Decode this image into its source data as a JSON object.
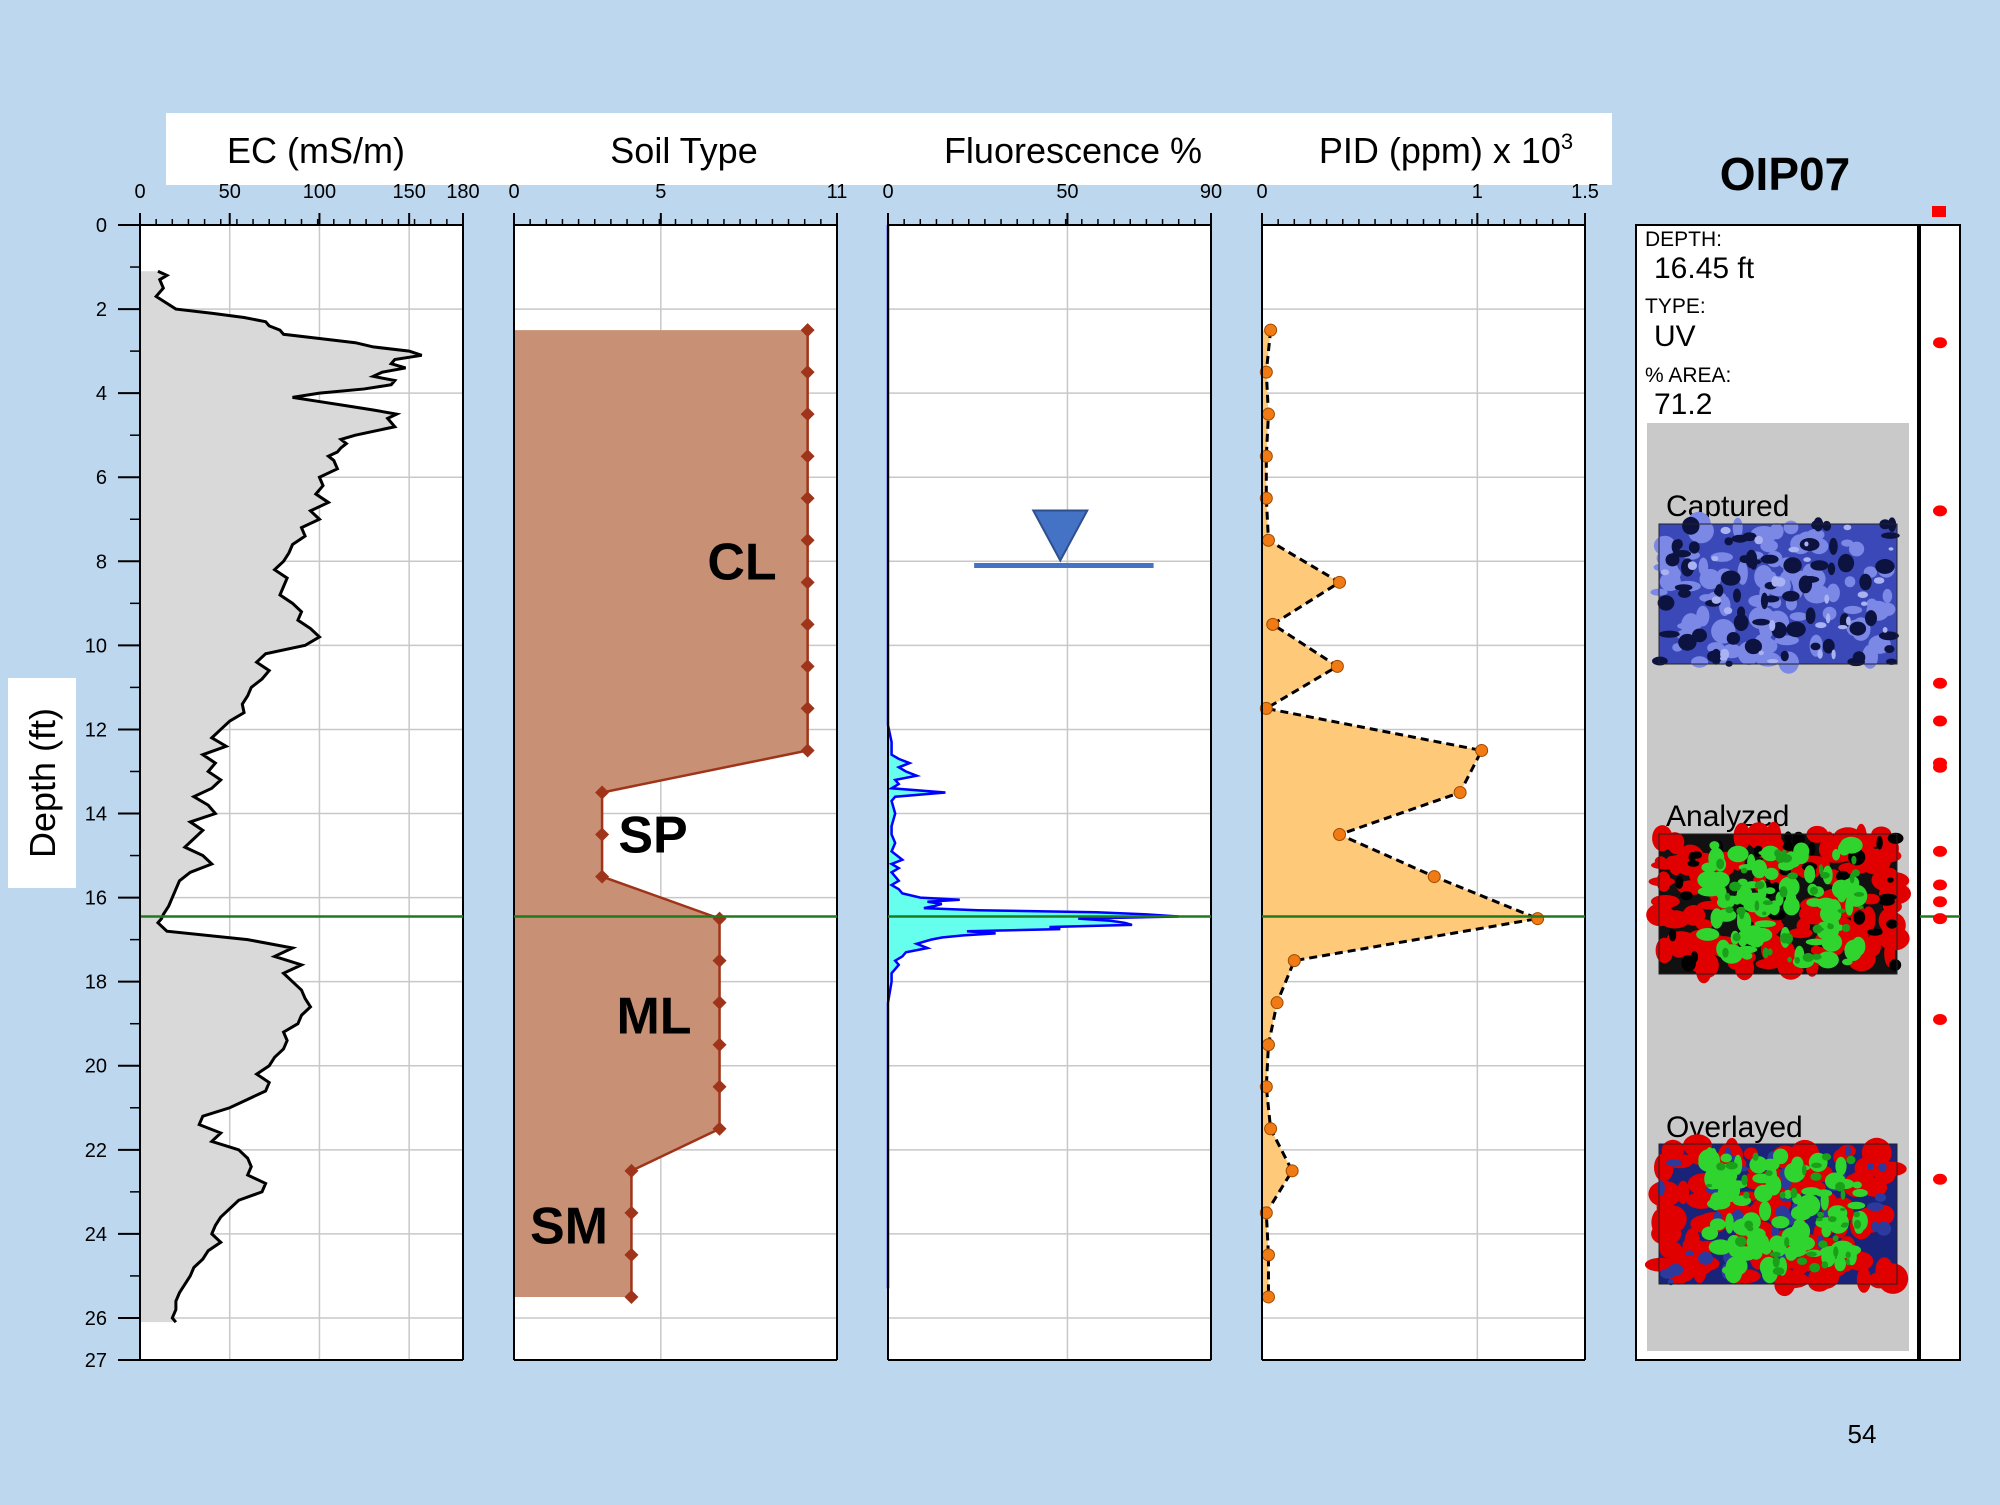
{
  "slide": {
    "title": "OIP07",
    "page_number": "54"
  },
  "colors": {
    "background": "#bdd7ee",
    "ec_fill": "#d9d9d9",
    "soil_fill": "#c89074",
    "soil_line": "#a0341a",
    "fluor_fill": "#66ffee",
    "fluor_line": "#0000ff",
    "pid_fill": "#ffc97a",
    "pid_marker": "#f07a14",
    "current_depth_line": "#1f7a1f",
    "water_table": "#4472c4"
  },
  "chart_data": {
    "type": "line",
    "ylabel": "Depth (ft)",
    "ylim": [
      0,
      27
    ],
    "y_ticks": [
      "0",
      "2",
      "4",
      "6",
      "8",
      "10",
      "12",
      "14",
      "16",
      "18",
      "20",
      "22",
      "24",
      "26",
      "27"
    ],
    "current_depth": 16.45,
    "tracks": [
      {
        "id": "ec",
        "title": "EC (mS/m)",
        "xlim": [
          0,
          180
        ],
        "tick_labels": [
          "0",
          "50",
          "100",
          "150",
          "180"
        ],
        "series": {
          "depth": [
            1.1,
            1.2,
            1.3,
            1.5,
            1.7,
            2.0,
            2.1,
            2.2,
            2.3,
            2.4,
            2.5,
            2.6,
            2.7,
            2.8,
            2.9,
            3.0,
            3.1,
            3.2,
            3.3,
            3.4,
            3.5,
            3.6,
            3.7,
            3.8,
            3.9,
            4.0,
            4.1,
            4.2,
            4.3,
            4.4,
            4.5,
            4.6,
            4.8,
            5.0,
            5.1,
            5.2,
            5.3,
            5.4,
            5.5,
            5.6,
            5.8,
            6.0,
            6.2,
            6.4,
            6.6,
            6.8,
            7.0,
            7.2,
            7.4,
            7.6,
            7.8,
            8.0,
            8.2,
            8.4,
            8.6,
            8.8,
            9.0,
            9.2,
            9.4,
            9.6,
            9.8,
            10.0,
            10.2,
            10.4,
            10.6,
            10.8,
            11.0,
            11.2,
            11.4,
            11.6,
            11.8,
            12.0,
            12.2,
            12.4,
            12.6,
            12.8,
            13.0,
            13.2,
            13.4,
            13.6,
            13.8,
            14.0,
            14.2,
            14.4,
            14.6,
            14.8,
            15.0,
            15.2,
            15.4,
            15.6,
            15.8,
            16.0,
            16.2,
            16.4,
            16.5,
            16.6,
            16.8,
            17.0,
            17.2,
            17.4,
            17.6,
            17.8,
            18.0,
            18.2,
            18.4,
            18.6,
            18.8,
            19.0,
            19.2,
            19.4,
            19.6,
            19.8,
            20.0,
            20.2,
            20.4,
            20.6,
            20.8,
            21.0,
            21.2,
            21.4,
            21.6,
            21.8,
            22.0,
            22.2,
            22.4,
            22.6,
            22.8,
            23.0,
            23.2,
            23.4,
            23.6,
            23.8,
            24.0,
            24.2,
            24.4,
            24.6,
            24.8,
            25.0,
            25.2,
            25.4,
            25.6,
            25.8,
            26.0,
            26.1
          ],
          "value": [
            10,
            15,
            11,
            13,
            9,
            20,
            40,
            58,
            70,
            72,
            78,
            80,
            100,
            120,
            130,
            150,
            157,
            142,
            140,
            148,
            135,
            130,
            142,
            140,
            125,
            100,
            85,
            100,
            115,
            130,
            143,
            138,
            142,
            120,
            112,
            115,
            112,
            110,
            105,
            108,
            110,
            100,
            102,
            98,
            105,
            95,
            100,
            90,
            92,
            85,
            83,
            80,
            75,
            82,
            80,
            78,
            85,
            90,
            88,
            95,
            100,
            92,
            70,
            65,
            72,
            68,
            62,
            60,
            57,
            58,
            50,
            45,
            40,
            48,
            35,
            42,
            38,
            45,
            40,
            30,
            38,
            42,
            28,
            35,
            30,
            25,
            35,
            40,
            28,
            22,
            20,
            18,
            16,
            13,
            12,
            10,
            15,
            60,
            85,
            75,
            90,
            80,
            85,
            90,
            92,
            95,
            90,
            88,
            80,
            82,
            80,
            75,
            72,
            65,
            72,
            70,
            60,
            50,
            35,
            33,
            45,
            40,
            55,
            60,
            62,
            60,
            70,
            68,
            55,
            50,
            45,
            42,
            40,
            45,
            38,
            35,
            30,
            28,
            25,
            22,
            20,
            20,
            18,
            20
          ],
          "baseline_end": 26.1
        }
      },
      {
        "id": "soil",
        "title": "Soil Type",
        "xlim": [
          0,
          11
        ],
        "tick_labels": [
          "0",
          "5",
          "11"
        ],
        "series": {
          "depth": [
            2.5,
            3.5,
            4.5,
            5.5,
            6.5,
            7.5,
            8.5,
            9.5,
            10.5,
            11.5,
            12.5,
            13.5,
            14.5,
            15.5,
            16.5,
            17.5,
            18.5,
            19.5,
            20.5,
            21.5,
            22.5,
            23.5,
            24.5,
            25.5
          ],
          "value": [
            10,
            10,
            10,
            10,
            10,
            10,
            10,
            10,
            10,
            10,
            10,
            3,
            3,
            3,
            7,
            7,
            7,
            7,
            7,
            7,
            4,
            4,
            4,
            4
          ]
        },
        "labels": [
          {
            "text": "CL",
            "depth": 8
          },
          {
            "text": "SP",
            "depth": 14.5
          },
          {
            "text": "ML",
            "depth": 18.8
          },
          {
            "text": "SM",
            "depth": 23.8
          }
        ]
      },
      {
        "id": "fluor",
        "title": "Fluorescence %",
        "xlim": [
          0,
          90
        ],
        "tick_labels": [
          "0",
          "50",
          "90"
        ],
        "water_table_depth": 8.1,
        "series": {
          "depth": [
            0,
            11.9,
            12.3,
            12.6,
            12.7,
            12.8,
            12.9,
            13.0,
            13.1,
            13.2,
            13.3,
            13.4,
            13.5,
            13.6,
            13.7,
            14.0,
            14.3,
            14.5,
            14.7,
            14.9,
            15.1,
            15.2,
            15.3,
            15.4,
            15.5,
            15.6,
            15.7,
            15.8,
            15.9,
            16.0,
            16.05,
            16.1,
            16.15,
            16.2,
            16.25,
            16.3,
            16.35,
            16.4,
            16.45,
            16.5,
            16.55,
            16.6,
            16.65,
            16.7,
            16.75,
            16.8,
            16.85,
            16.9,
            16.95,
            17.0,
            17.1,
            17.2,
            17.3,
            17.4,
            17.5,
            17.6,
            17.7,
            17.8,
            18.0,
            18.5,
            25.3
          ],
          "value": [
            0,
            0,
            1,
            1,
            3,
            6,
            3,
            5,
            8,
            2,
            3,
            1,
            16,
            2,
            1,
            2,
            1,
            1,
            2,
            1,
            4,
            1,
            3,
            1,
            2,
            3,
            1,
            3,
            4,
            9,
            20,
            11,
            15,
            13,
            10,
            25,
            58,
            72,
            81,
            53,
            62,
            66,
            68,
            45,
            48,
            22,
            30,
            21,
            15,
            12,
            8,
            11,
            5,
            4,
            2,
            3,
            2,
            1,
            1,
            0,
            0
          ]
        }
      },
      {
        "id": "pid",
        "title": "PID (ppm) x 10",
        "title_superscript": "3",
        "xlim": [
          0,
          1.5
        ],
        "tick_labels": [
          "0",
          "1",
          "1.5"
        ],
        "series": {
          "depth": [
            2.5,
            3.5,
            4.5,
            5.5,
            6.5,
            7.5,
            8.5,
            9.5,
            10.5,
            11.5,
            12.5,
            13.5,
            14.5,
            15.5,
            16.5,
            17.5,
            18.5,
            19.5,
            20.5,
            21.5,
            22.5,
            23.5,
            24.5,
            25.5
          ],
          "value": [
            0.04,
            0.02,
            0.03,
            0.02,
            0.02,
            0.03,
            0.36,
            0.05,
            0.35,
            0.02,
            1.02,
            0.92,
            0.36,
            0.8,
            1.28,
            0.15,
            0.07,
            0.03,
            0.02,
            0.04,
            0.14,
            0.02,
            0.03,
            0.03
          ]
        }
      }
    ],
    "image_panel": {
      "depth_label": "DEPTH:",
      "depth_value": "16.45 ft",
      "type_label": "TYPE:",
      "type_value": "UV",
      "area_label": "% AREA:",
      "area_value": "71.2",
      "captions": [
        "Captured",
        "Analyzed",
        "Overlayed"
      ]
    },
    "image_markers_depth": [
      2.8,
      6.8,
      10.9,
      11.8,
      12.8,
      12.9,
      14.9,
      15.7,
      16.1,
      16.5,
      18.9,
      22.7
    ]
  }
}
